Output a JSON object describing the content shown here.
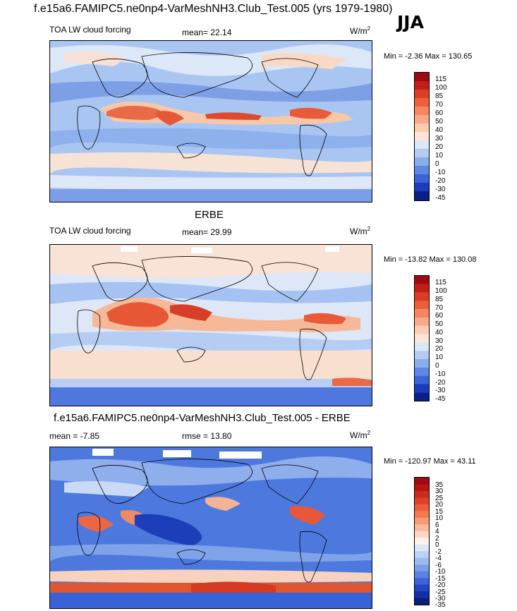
{
  "header": {
    "title": "f.e15a6.FAMIPC5.ne0np4-VarMeshNH3.Club_Test.005 (yrs 1979-1980)",
    "season": "JJA"
  },
  "panels": [
    {
      "left_label": "TOA LW cloud forcing",
      "mid_label": "mean=  22.14",
      "units": "W/m",
      "units_sup": "2",
      "minmax": "Min =  -2.36 Max = 130.65",
      "levels": [
        "115",
        "100",
        "85",
        "70",
        "60",
        "50",
        "40",
        "30",
        "20",
        "10",
        "0",
        "-10",
        "-20",
        "-30",
        "-45"
      ]
    },
    {
      "panel_title": "ERBE",
      "left_label": "TOA LW cloud forcing",
      "mid_label": "mean=  29.99",
      "units": "W/m",
      "units_sup": "2",
      "minmax": "Min = -13.82 Max = 130.08",
      "levels": [
        "115",
        "100",
        "85",
        "70",
        "60",
        "50",
        "40",
        "30",
        "20",
        "10",
        "0",
        "-10",
        "-20",
        "-30",
        "-45"
      ]
    },
    {
      "panel_title": "f.e15a6.FAMIPC5.ne0np4-VarMeshNH3.Club_Test.005 - ERBE",
      "left_label": "mean =  -7.85",
      "mid_label": "rmse =  13.80",
      "units": "W/m",
      "units_sup": "2",
      "minmax": "Min = -120.97 Max =  43.11",
      "levels": [
        "35",
        "30",
        "25",
        "20",
        "15",
        "10",
        "6",
        "4",
        "2",
        "0",
        "-2",
        "-4",
        "-6",
        "-10",
        "-15",
        "-20",
        "-25",
        "-30",
        "-35"
      ]
    }
  ],
  "chart_data": [
    {
      "type": "heatmap",
      "title": "TOA LW cloud forcing",
      "subtitle": "f.e15a6.FAMIPC5.ne0np4-VarMeshNH3.Club_Test.005 (yrs 1979-1980)",
      "season": "JJA",
      "mean": 22.14,
      "min": -2.36,
      "max": 130.65,
      "units": "W/m2",
      "contour_levels": [
        -45,
        -30,
        -20,
        -10,
        0,
        10,
        20,
        30,
        40,
        50,
        60,
        70,
        85,
        100,
        115
      ]
    },
    {
      "type": "heatmap",
      "title": "TOA LW cloud forcing",
      "subtitle": "ERBE",
      "season": "JJA",
      "mean": 29.99,
      "min": -13.82,
      "max": 130.08,
      "units": "W/m2",
      "contour_levels": [
        -45,
        -30,
        -20,
        -10,
        0,
        10,
        20,
        30,
        40,
        50,
        60,
        70,
        85,
        100,
        115
      ]
    },
    {
      "type": "heatmap",
      "title": "f.e15a6.FAMIPC5.ne0np4-VarMeshNH3.Club_Test.005 - ERBE",
      "season": "JJA",
      "mean": -7.85,
      "rmse": 13.8,
      "min": -120.97,
      "max": 43.11,
      "units": "W/m2",
      "contour_levels": [
        -35,
        -30,
        -25,
        -20,
        -15,
        -10,
        -6,
        -4,
        -2,
        0,
        2,
        4,
        6,
        10,
        15,
        20,
        25,
        30,
        35
      ]
    }
  ]
}
